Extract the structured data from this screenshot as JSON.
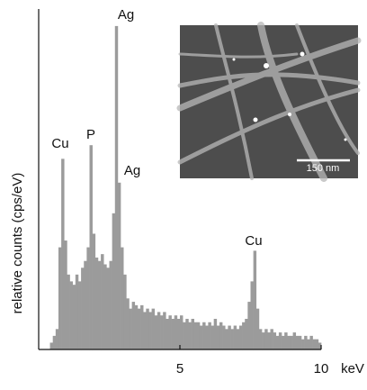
{
  "chart_data": {
    "type": "histogram",
    "y_label": "relative counts (cps/eV)",
    "x_label": "keV",
    "bins": [
      0.4,
      0.5,
      0.6,
      0.7,
      0.8,
      0.9,
      1.0,
      1.1,
      1.2,
      1.3,
      1.4,
      1.5,
      1.6,
      1.7,
      1.8,
      1.9,
      2.0,
      2.1,
      2.2,
      2.3,
      2.4,
      2.5,
      2.6,
      2.7,
      2.8,
      2.9,
      3.0,
      3.1,
      3.2,
      3.3,
      3.4,
      3.5,
      3.6,
      3.7,
      3.8,
      3.9,
      4.0,
      4.1,
      4.2,
      4.3,
      4.4,
      4.5,
      4.6,
      4.7,
      4.8,
      4.9,
      5.0,
      5.1,
      5.2,
      5.3,
      5.4,
      5.5,
      5.6,
      5.7,
      5.8,
      5.9,
      6.0,
      6.1,
      6.2,
      6.3,
      6.4,
      6.5,
      6.6,
      6.7,
      6.8,
      6.9,
      7.0,
      7.1,
      7.2,
      7.3,
      7.4,
      7.5,
      7.6,
      7.7,
      7.8,
      7.9,
      8.0,
      8.1,
      8.2,
      8.3,
      8.4,
      8.5,
      8.6,
      8.7,
      8.8,
      8.9,
      9.0,
      9.1,
      9.2,
      9.3,
      9.4,
      9.5,
      9.6,
      9.7,
      9.8,
      9.9,
      10.0
    ],
    "counts": [
      2,
      4,
      6,
      30,
      56,
      32,
      22,
      20,
      19,
      22,
      20,
      24,
      26,
      30,
      60,
      34,
      27,
      26,
      28,
      25,
      24,
      26,
      40,
      95,
      49,
      30,
      22,
      15,
      12,
      14,
      13,
      12,
      13,
      11,
      12,
      11,
      12,
      10,
      11,
      10,
      11,
      9,
      10,
      9,
      10,
      9,
      10,
      8,
      9,
      8,
      9,
      8,
      8,
      7,
      8,
      7,
      8,
      7,
      9,
      7,
      8,
      7,
      6,
      7,
      6,
      7,
      6,
      7,
      8,
      9,
      14,
      20,
      29,
      12,
      6,
      5,
      6,
      5,
      6,
      5,
      4,
      5,
      4,
      5,
      4,
      4,
      5,
      4,
      4,
      3,
      4,
      3,
      4,
      3,
      3,
      2
    ],
    "color": "#9b9b9b",
    "xlim": [
      0,
      10
    ],
    "xticks": [
      5,
      10
    ],
    "ylim": [
      0,
      100
    ],
    "annotations": [
      "Cu",
      "P",
      "Ag",
      "Ag",
      "Cu"
    ],
    "inset": {
      "scale_bar": "150 nm"
    }
  }
}
